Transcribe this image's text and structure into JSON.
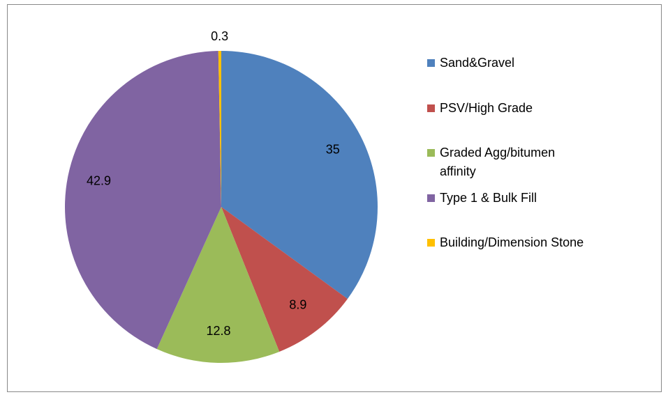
{
  "chart_data": {
    "type": "pie",
    "categories": [
      "Sand&Gravel",
      "PSV/High Grade",
      "Graded Agg/bitumen affinity",
      "Type 1 & Bulk Fill",
      "Building/Dimension Stone"
    ],
    "values": [
      35,
      8.9,
      12.8,
      42.9,
      0.3
    ],
    "colors": [
      "#4f81bd",
      "#c0504d",
      "#9bbb59",
      "#8064a2",
      "#ffc000"
    ],
    "legend": "right"
  }
}
